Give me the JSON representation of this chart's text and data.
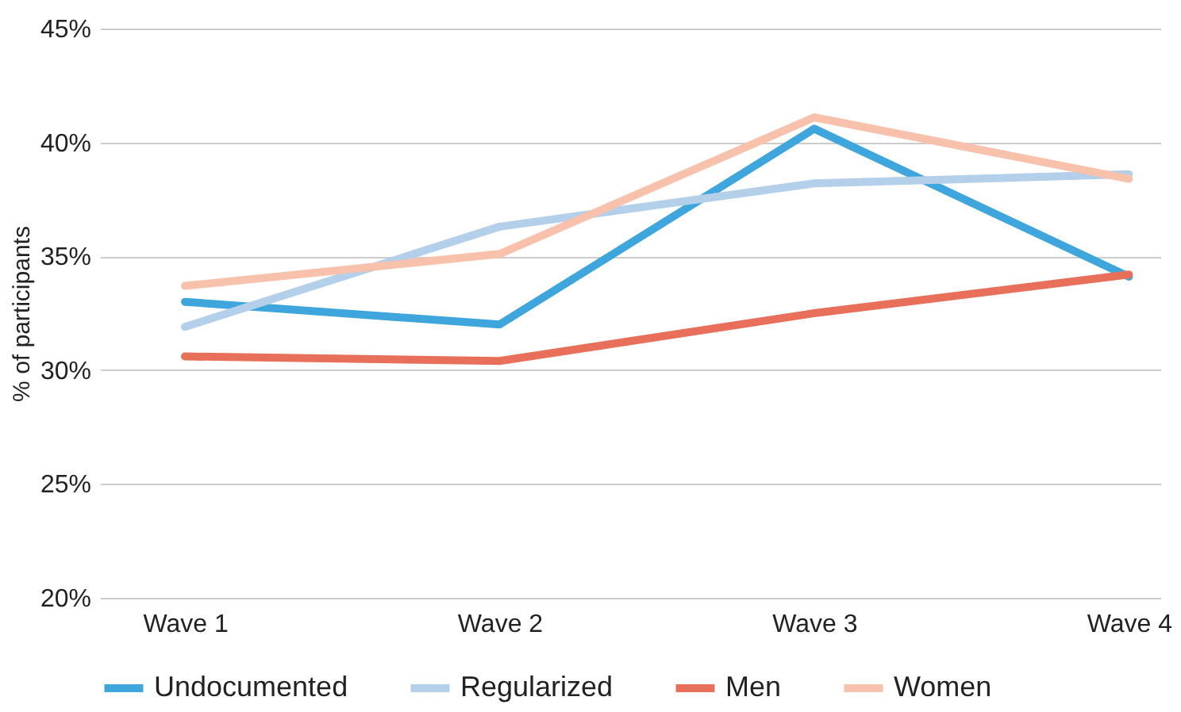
{
  "chart_data": {
    "type": "line",
    "ylabel": "% of participants",
    "categories": [
      "Wave 1",
      "Wave 2",
      "Wave 3",
      "Wave 4"
    ],
    "series": [
      {
        "name": "Undocumented",
        "color": "#3ea6dc",
        "values": [
          33.0,
          32.0,
          40.6,
          34.1
        ]
      },
      {
        "name": "Regularized",
        "color": "#b4cfea",
        "values": [
          31.9,
          36.3,
          38.2,
          38.6
        ]
      },
      {
        "name": "Men",
        "color": "#e8705a",
        "values": [
          30.6,
          30.4,
          32.5,
          34.2
        ]
      },
      {
        "name": "Women",
        "color": "#f7c1ab",
        "values": [
          33.7,
          35.1,
          41.1,
          38.4
        ]
      }
    ],
    "ylim": [
      20,
      45
    ],
    "yticks": [
      {
        "value": 20,
        "label": "20%"
      },
      {
        "value": 25,
        "label": "25%"
      },
      {
        "value": 30,
        "label": "30%"
      },
      {
        "value": 35,
        "label": "35%"
      },
      {
        "value": 40,
        "label": "40%"
      },
      {
        "value": 45,
        "label": "45%"
      }
    ],
    "grid": "y",
    "legend": "bottom",
    "marker": "none",
    "line_style": "solid"
  }
}
